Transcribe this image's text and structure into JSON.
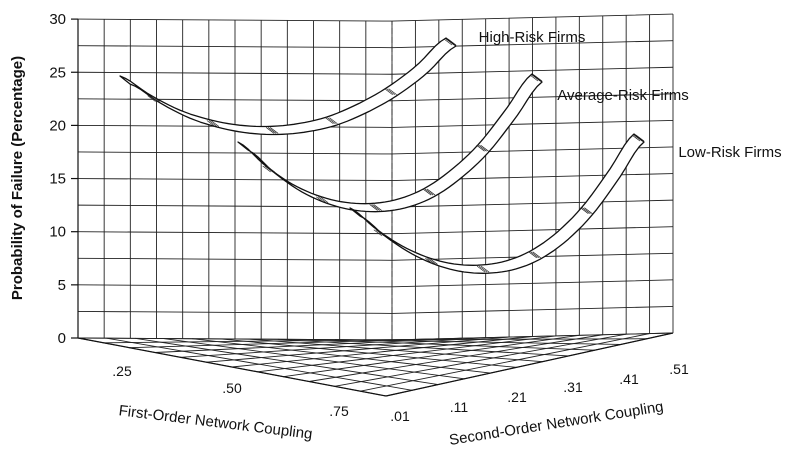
{
  "chart_data": {
    "type": "line",
    "ylabel": "Probability of Failure (Percentage)",
    "xlabel": "First-Order Network Coupling",
    "zlabel": "Second-Order Network Coupling",
    "ylim": [
      0,
      30
    ],
    "y_ticks": [
      "0",
      "5",
      "10",
      "15",
      "20",
      "25",
      "30"
    ],
    "x_ticks": [
      ".25",
      ".50",
      ".75"
    ],
    "z_ticks": [
      ".01",
      ".11",
      ".21",
      ".31",
      ".41",
      ".51"
    ],
    "grid": true,
    "x": [
      0.01,
      0.06,
      0.11,
      0.16,
      0.21,
      0.26,
      0.31,
      0.36,
      0.41,
      0.46,
      0.51,
      0.56
    ],
    "series": [
      {
        "name": "High-Risk Firms",
        "values": [
          23.5,
          20.8,
          18.6,
          17.2,
          16.4,
          16.2,
          16.6,
          17.6,
          19.4,
          21.8,
          25.0,
          29.0
        ]
      },
      {
        "name": "Average-Risk Firms",
        "values": [
          17.8,
          15.7,
          14.0,
          12.9,
          12.3,
          12.2,
          12.6,
          13.6,
          15.3,
          17.6,
          20.7,
          24.0
        ]
      },
      {
        "name": "Low-Risk Firms",
        "values": [
          11.8,
          10.2,
          8.9,
          8.0,
          7.5,
          7.4,
          7.7,
          8.5,
          9.9,
          11.9,
          14.6,
          17.5
        ]
      }
    ]
  }
}
